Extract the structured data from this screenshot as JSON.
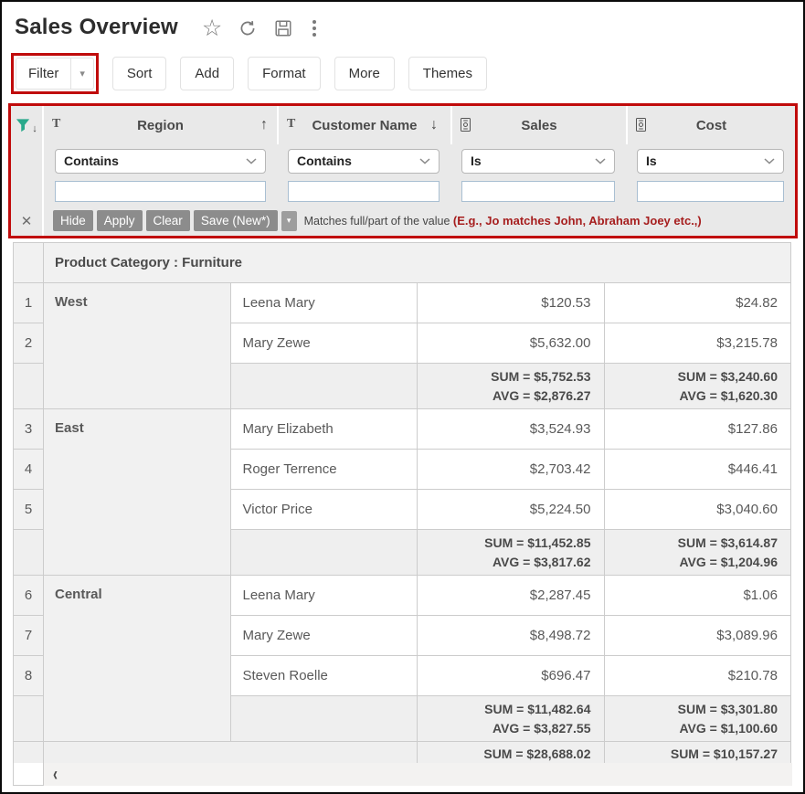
{
  "header": {
    "title": "Sales Overview",
    "icons": {
      "star": "☆",
      "kebab": "⋮"
    }
  },
  "toolbar": {
    "buttons": [
      "Filter",
      "Sort",
      "Add",
      "Format",
      "More",
      "Themes"
    ],
    "filter_arrow": "▾"
  },
  "filter_panel": {
    "funnel_arrow": "↓",
    "columns": [
      {
        "label": "Region",
        "type": "text",
        "type_glyph": "T",
        "sort_glyph": "↑",
        "operator": "Contains",
        "value": ""
      },
      {
        "label": "Customer Name",
        "type": "text",
        "type_glyph": "T",
        "sort_glyph": "↓",
        "operator": "Contains",
        "value": ""
      },
      {
        "label": "Sales",
        "type": "currency",
        "type_glyph": "",
        "sort_glyph": "",
        "operator": "Is",
        "value": ""
      },
      {
        "label": "Cost",
        "type": "currency",
        "type_glyph": "",
        "sort_glyph": "",
        "operator": "Is",
        "value": ""
      }
    ],
    "actions": {
      "close": "✕",
      "hide": "Hide",
      "apply": "Apply",
      "clear": "Clear",
      "save": "Save (New*)",
      "save_arrow": "▾"
    },
    "hint": {
      "normal": "Matches full/part of the value ",
      "highlight": "(E.g., Jo matches John, Abraham Joey etc.,)"
    }
  },
  "table": {
    "group_header": "Product Category : Furniture",
    "groups": [
      {
        "region": "West",
        "rows": [
          {
            "num": "1",
            "customer": "Leena Mary",
            "sales": "$120.53",
            "cost": "$24.82"
          },
          {
            "num": "2",
            "customer": "Mary Zewe",
            "sales": "$5,632.00",
            "cost": "$3,215.78"
          }
        ],
        "subtotal": {
          "sales_sum": "SUM = $5,752.53",
          "sales_avg": "AVG = $2,876.27",
          "cost_sum": "SUM = $3,240.60",
          "cost_avg": "AVG = $1,620.30"
        }
      },
      {
        "region": "East",
        "rows": [
          {
            "num": "3",
            "customer": "Mary Elizabeth",
            "sales": "$3,524.93",
            "cost": "$127.86"
          },
          {
            "num": "4",
            "customer": "Roger Terrence",
            "sales": "$2,703.42",
            "cost": "$446.41"
          },
          {
            "num": "5",
            "customer": "Victor Price",
            "sales": "$5,224.50",
            "cost": "$3,040.60"
          }
        ],
        "subtotal": {
          "sales_sum": "SUM = $11,452.85",
          "sales_avg": "AVG = $3,817.62",
          "cost_sum": "SUM = $3,614.87",
          "cost_avg": "AVG = $1,204.96"
        }
      },
      {
        "region": "Central",
        "rows": [
          {
            "num": "6",
            "customer": "Leena Mary",
            "sales": "$2,287.45",
            "cost": "$1.06"
          },
          {
            "num": "7",
            "customer": "Mary Zewe",
            "sales": "$8,498.72",
            "cost": "$3,089.96"
          },
          {
            "num": "8",
            "customer": "Steven Roelle",
            "sales": "$696.47",
            "cost": "$210.78"
          }
        ],
        "subtotal": {
          "sales_sum": "SUM = $11,482.64",
          "sales_avg": "AVG = $3,827.55",
          "cost_sum": "SUM = $3,301.80",
          "cost_avg": "AVG = $1,100.60"
        }
      }
    ],
    "grand_total": {
      "sales": "SUM = $28,688.02",
      "cost": "SUM = $10,157.27"
    }
  },
  "scrollbar": {
    "left_glyph": "‹"
  }
}
